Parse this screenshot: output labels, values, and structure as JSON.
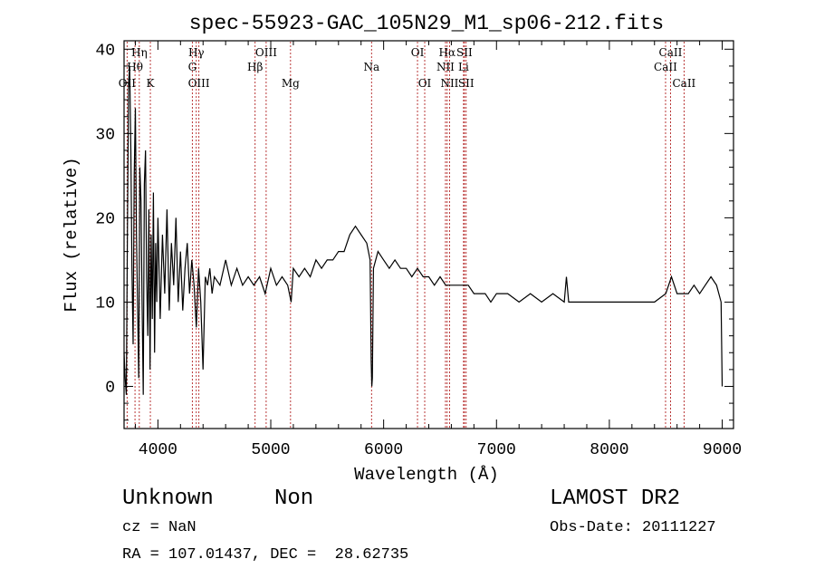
{
  "chart_data": {
    "type": "line",
    "title": "spec-55923-GAC_105N29_M1_sp06-212.fits",
    "xlabel": "Wavelength (Å)",
    "ylabel": "Flux (relative)",
    "xlim": [
      3700,
      9100
    ],
    "ylim": [
      -5,
      41
    ],
    "xticks": [
      4000,
      5000,
      6000,
      7000,
      8000,
      9000
    ],
    "yticks": [
      0,
      10,
      20,
      30,
      40
    ],
    "grid": false,
    "series": [
      {
        "values": [
          [
            3700,
            4
          ],
          [
            3710,
            1
          ],
          [
            3720,
            -1
          ],
          [
            3730,
            18
          ],
          [
            3740,
            36
          ],
          [
            3750,
            38
          ],
          [
            3760,
            28
          ],
          [
            3770,
            14
          ],
          [
            3780,
            5
          ],
          [
            3790,
            25
          ],
          [
            3800,
            33
          ],
          [
            3810,
            18
          ],
          [
            3820,
            9
          ],
          [
            3830,
            1
          ],
          [
            3840,
            26
          ],
          [
            3850,
            22
          ],
          [
            3860,
            10
          ],
          [
            3870,
            -1
          ],
          [
            3880,
            24
          ],
          [
            3890,
            28
          ],
          [
            3900,
            13
          ],
          [
            3910,
            6
          ],
          [
            3920,
            21
          ],
          [
            3930,
            2
          ],
          [
            3940,
            18
          ],
          [
            3950,
            8
          ],
          [
            3960,
            23
          ],
          [
            3970,
            4
          ],
          [
            3980,
            17
          ],
          [
            3990,
            10
          ],
          [
            4000,
            20
          ],
          [
            4020,
            8
          ],
          [
            4040,
            18
          ],
          [
            4060,
            11
          ],
          [
            4080,
            21
          ],
          [
            4100,
            9
          ],
          [
            4120,
            17
          ],
          [
            4140,
            12
          ],
          [
            4160,
            20
          ],
          [
            4180,
            10
          ],
          [
            4200,
            16
          ],
          [
            4220,
            9
          ],
          [
            4240,
            14
          ],
          [
            4260,
            17
          ],
          [
            4280,
            11
          ],
          [
            4300,
            15
          ],
          [
            4320,
            12
          ],
          [
            4340,
            7
          ],
          [
            4360,
            14
          ],
          [
            4380,
            10
          ],
          [
            4400,
            2
          ],
          [
            4420,
            13
          ],
          [
            4440,
            12
          ],
          [
            4460,
            14
          ],
          [
            4480,
            11
          ],
          [
            4500,
            13
          ],
          [
            4550,
            12
          ],
          [
            4600,
            15
          ],
          [
            4650,
            12
          ],
          [
            4700,
            14
          ],
          [
            4750,
            12
          ],
          [
            4800,
            13
          ],
          [
            4850,
            12
          ],
          [
            4900,
            13
          ],
          [
            4950,
            11
          ],
          [
            5000,
            14
          ],
          [
            5050,
            12
          ],
          [
            5100,
            13
          ],
          [
            5150,
            12
          ],
          [
            5180,
            10
          ],
          [
            5200,
            14
          ],
          [
            5250,
            13
          ],
          [
            5300,
            14
          ],
          [
            5350,
            13
          ],
          [
            5400,
            15
          ],
          [
            5450,
            14
          ],
          [
            5500,
            15
          ],
          [
            5550,
            15
          ],
          [
            5600,
            16
          ],
          [
            5650,
            16
          ],
          [
            5700,
            18
          ],
          [
            5750,
            19
          ],
          [
            5800,
            18
          ],
          [
            5850,
            17
          ],
          [
            5880,
            15
          ],
          [
            5890,
            3
          ],
          [
            5895,
            0
          ],
          [
            5900,
            1
          ],
          [
            5910,
            14
          ],
          [
            5950,
            16
          ],
          [
            6000,
            15
          ],
          [
            6050,
            14
          ],
          [
            6100,
            15
          ],
          [
            6150,
            14
          ],
          [
            6200,
            14
          ],
          [
            6250,
            13
          ],
          [
            6300,
            14
          ],
          [
            6350,
            13
          ],
          [
            6400,
            13
          ],
          [
            6450,
            12
          ],
          [
            6500,
            13
          ],
          [
            6550,
            12
          ],
          [
            6600,
            12
          ],
          [
            6650,
            12
          ],
          [
            6700,
            12
          ],
          [
            6750,
            12
          ],
          [
            6800,
            11
          ],
          [
            6850,
            11
          ],
          [
            6900,
            11
          ],
          [
            6950,
            10
          ],
          [
            7000,
            11
          ],
          [
            7100,
            11
          ],
          [
            7200,
            10
          ],
          [
            7300,
            11
          ],
          [
            7400,
            10
          ],
          [
            7500,
            11
          ],
          [
            7600,
            10
          ],
          [
            7620,
            13
          ],
          [
            7640,
            10
          ],
          [
            7700,
            10
          ],
          [
            7800,
            10
          ],
          [
            7900,
            10
          ],
          [
            8000,
            10
          ],
          [
            8100,
            10
          ],
          [
            8200,
            10
          ],
          [
            8300,
            10
          ],
          [
            8400,
            10
          ],
          [
            8500,
            11
          ],
          [
            8550,
            13
          ],
          [
            8600,
            11
          ],
          [
            8650,
            11
          ],
          [
            8700,
            11
          ],
          [
            8750,
            12
          ],
          [
            8800,
            11
          ],
          [
            8850,
            12
          ],
          [
            8900,
            13
          ],
          [
            8950,
            12
          ],
          [
            8990,
            10
          ],
          [
            9000,
            0
          ]
        ]
      }
    ],
    "line_labels": [
      {
        "label": "OII",
        "x": 3727,
        "row": 3
      },
      {
        "label": "Hη",
        "x": 3835,
        "row": 1
      },
      {
        "label": "Hθ",
        "x": 3797,
        "row": 2
      },
      {
        "label": "K",
        "x": 3933,
        "row": 3
      },
      {
        "label": "Hγ",
        "x": 4340,
        "row": 1
      },
      {
        "label": "G",
        "x": 4305,
        "row": 2
      },
      {
        "label": "OIII",
        "x": 4363,
        "row": 3
      },
      {
        "label": "OIII",
        "x": 4959,
        "row": 1
      },
      {
        "label": "Hβ",
        "x": 4861,
        "row": 2
      },
      {
        "label": "Mg",
        "x": 5175,
        "row": 3
      },
      {
        "label": "Na",
        "x": 5893,
        "row": 2
      },
      {
        "label": "OI",
        "x": 6300,
        "row": 1
      },
      {
        "label": "OI",
        "x": 6364,
        "row": 3
      },
      {
        "label": "Hα",
        "x": 6563,
        "row": 1
      },
      {
        "label": "SII",
        "x": 6716,
        "row": 1
      },
      {
        "label": "NII",
        "x": 6548,
        "row": 2
      },
      {
        "label": "Li",
        "x": 6708,
        "row": 2
      },
      {
        "label": "NII",
        "x": 6584,
        "row": 3
      },
      {
        "label": "SII",
        "x": 6731,
        "row": 3
      },
      {
        "label": "CaII",
        "x": 8542,
        "row": 1
      },
      {
        "label": "CaII",
        "x": 8498,
        "row": 2
      },
      {
        "label": "CaII",
        "x": 8662,
        "row": 3
      }
    ],
    "marker_lines": [
      3727,
      3797,
      3835,
      3933,
      4305,
      4340,
      4363,
      4861,
      4959,
      5175,
      5893,
      6300,
      6364,
      6548,
      6563,
      6584,
      6708,
      6716,
      6731,
      8498,
      8542,
      8662
    ],
    "marker_color": "#b22222",
    "line_color": "#000000"
  },
  "info": {
    "classification": "Unknown",
    "subclass": "Non",
    "survey": "LAMOST DR2",
    "cz": "cz = NaN",
    "obs_date": "Obs-Date: 20111227",
    "coords": "RA = 107.01437, DEC =  28.62735"
  }
}
